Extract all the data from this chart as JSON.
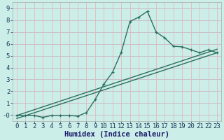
{
  "title": "",
  "xlabel": "Humidex (Indice chaleur)",
  "bg_color": "#cceee8",
  "grid_color_h": "#c8b8c8",
  "grid_color_v": "#e8b8b8",
  "line_color": "#2a7060",
  "xlim": [
    -0.5,
    23.5
  ],
  "ylim": [
    -0.5,
    9.5
  ],
  "xticks": [
    0,
    1,
    2,
    3,
    4,
    5,
    6,
    7,
    8,
    9,
    10,
    11,
    12,
    13,
    14,
    15,
    16,
    17,
    18,
    19,
    20,
    21,
    22,
    23
  ],
  "yticks": [
    0,
    1,
    2,
    3,
    4,
    5,
    6,
    7,
    8,
    9
  ],
  "ytick_labels": [
    "0",
    "1",
    "2",
    "3",
    "4",
    "5",
    "6",
    "7",
    "8",
    "9"
  ],
  "ytick_labels_left": [
    "-0",
    "1",
    "2",
    "3",
    "4",
    "5",
    "6",
    "7",
    "8",
    "9"
  ],
  "curve1_x": [
    0,
    1,
    2,
    3,
    4,
    5,
    6,
    7,
    8,
    9,
    10,
    11,
    12,
    13,
    14,
    15,
    16,
    17,
    18,
    19,
    20,
    21,
    22,
    23
  ],
  "curve1_y": [
    -0.05,
    -0.05,
    -0.05,
    -0.2,
    -0.05,
    -0.05,
    -0.05,
    -0.1,
    0.2,
    1.3,
    2.6,
    3.6,
    5.3,
    7.9,
    8.25,
    8.75,
    7.0,
    6.5,
    5.8,
    5.75,
    5.5,
    5.25,
    5.5,
    5.25
  ],
  "line2_x": [
    0,
    23
  ],
  "line2_y": [
    -0.05,
    5.55
  ],
  "line3_x": [
    0,
    23
  ],
  "line3_y": [
    -0.3,
    5.25
  ],
  "marker_size": 3.5,
  "line_width": 1.0,
  "tick_fontsize": 6.5,
  "xlabel_fontsize": 7.5
}
